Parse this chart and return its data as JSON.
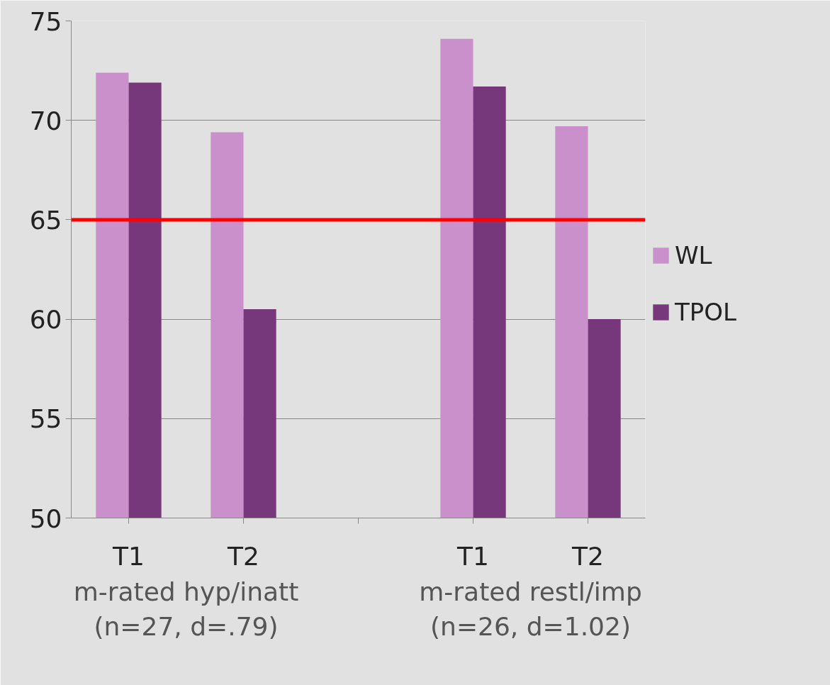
{
  "chart_data": {
    "type": "bar",
    "categories": [
      "T1",
      "T2",
      null,
      "T1",
      "T2"
    ],
    "series": [
      {
        "name": "WL",
        "color": "#c990cb",
        "values": [
          72.4,
          69.4,
          null,
          74.1,
          69.7
        ]
      },
      {
        "name": "TPOL",
        "color": "#76387a",
        "values": [
          71.9,
          60.5,
          null,
          71.7,
          60.0
        ]
      }
    ],
    "ylim": [
      50,
      75
    ],
    "yticks": [
      50,
      55,
      60,
      65,
      70,
      75
    ],
    "grid": "y",
    "legend": "right",
    "ref_lines": [
      {
        "axis": "y",
        "value": 65,
        "color": "#ff0000"
      }
    ],
    "annotations": [
      "m-rated hyp/inatt\n(n=27, d=.79)",
      "m-rated restl/imp\n(n=26, d=1.02)"
    ]
  }
}
